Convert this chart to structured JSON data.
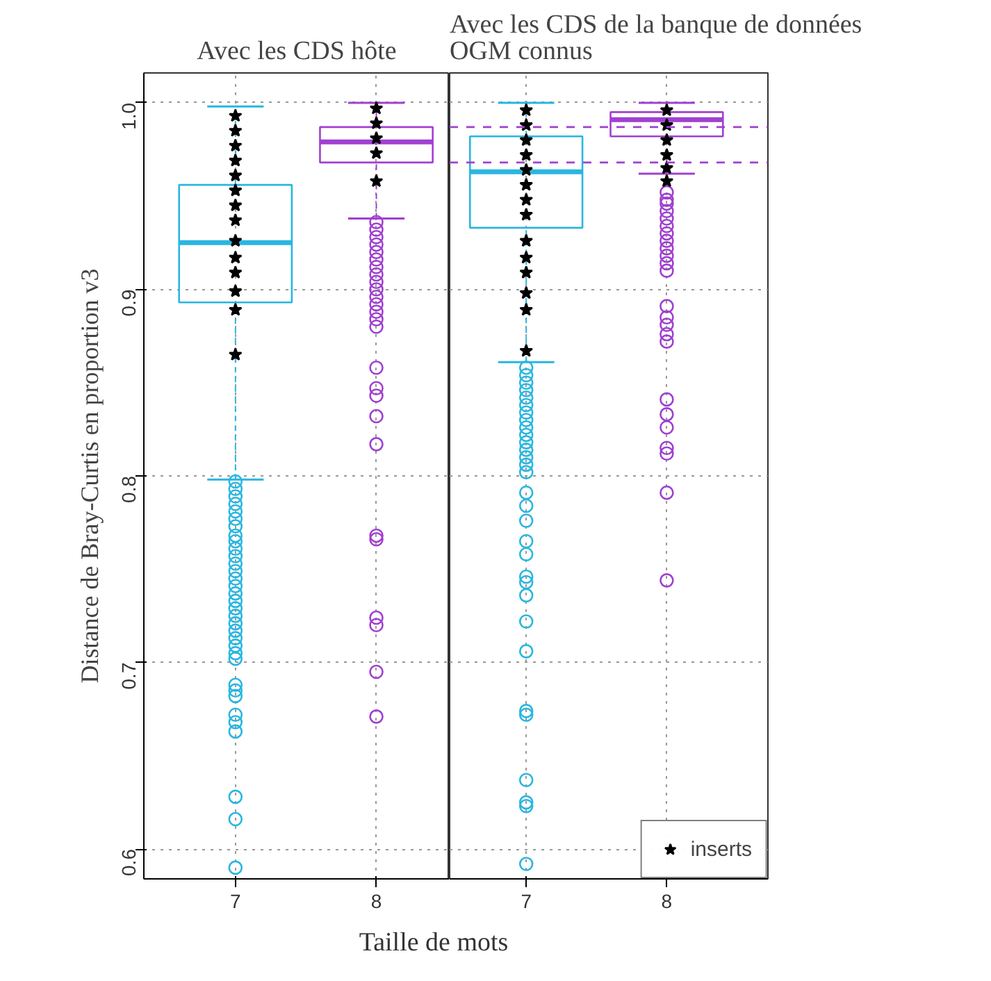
{
  "chart_data": [
    {
      "type": "box",
      "title": "Avec les CDS hôte",
      "xlabel": "Taille de mots",
      "ylabel": "Distance de Bray-Curtis en proportion v3",
      "categories": [
        "7",
        "8"
      ],
      "ylim": [
        0.584,
        1.016
      ],
      "yticks": [
        0.6,
        0.7,
        0.8,
        0.9,
        {
          "value": 1.0,
          "label": "1.0"
        }
      ],
      "grid": true,
      "legend": false,
      "colors": [
        "#29b6e0",
        "#a040d0"
      ],
      "boxes": [
        {
          "low": 0.798,
          "q1": 0.893,
          "median": 0.925,
          "q3": 0.956,
          "high": 0.998,
          "outliers": [
            0.797,
            0.793,
            0.789,
            0.785,
            0.781,
            0.777,
            0.773,
            0.768,
            0.765,
            0.761,
            0.757,
            0.753,
            0.749,
            0.745,
            0.741,
            0.737,
            0.733,
            0.729,
            0.725,
            0.721,
            0.717,
            0.713,
            0.709,
            0.705,
            0.702,
            0.688,
            0.685,
            0.682,
            0.672,
            0.668,
            0.663,
            0.628,
            0.616,
            0.59
          ]
        },
        {
          "low": 0.938,
          "q1": 0.968,
          "median": 0.979,
          "q3": 0.987,
          "high": 1.0,
          "outliers": [
            0.936,
            0.932,
            0.928,
            0.924,
            0.92,
            0.916,
            0.912,
            0.908,
            0.904,
            0.9,
            0.896,
            0.892,
            0.888,
            0.884,
            0.88,
            0.858,
            0.847,
            0.843,
            0.832,
            0.817,
            0.768,
            0.766,
            0.724,
            0.72,
            0.695,
            0.671
          ]
        }
      ],
      "series": [
        {
          "type": "scatter",
          "color": "#000000",
          "marker": "star",
          "x": [
            "7",
            "7",
            "7",
            "7",
            "7",
            "7",
            "7",
            "7",
            "7",
            "7",
            "7",
            "7",
            "7",
            "7",
            "8",
            "8",
            "8",
            "8",
            "8"
          ],
          "values": [
            0.993,
            0.985,
            0.977,
            0.969,
            0.961,
            0.953,
            0.945,
            0.937,
            0.926,
            0.917,
            0.909,
            0.899,
            0.889,
            0.865,
            0.997,
            0.989,
            0.981,
            0.973,
            0.958
          ]
        }
      ]
    },
    {
      "type": "box",
      "title": "Avec les CDS de la banque de données\nOGM connus",
      "categories": [
        "7",
        "8"
      ],
      "ylim": [
        0.584,
        1.016
      ],
      "yticks": [
        0.6,
        0.7,
        0.8,
        0.9,
        1.0
      ],
      "grid": true,
      "legend": "bottom right",
      "tick_labels": "x",
      "colors": [
        "#29b6e0",
        "#a040d0"
      ],
      "boxes": [
        {
          "low": 0.861,
          "q1": 0.933,
          "median": 0.963,
          "q3": 0.982,
          "high": 1.0,
          "outliers": [
            0.858,
            0.854,
            0.85,
            0.846,
            0.842,
            0.838,
            0.834,
            0.83,
            0.826,
            0.822,
            0.818,
            0.814,
            0.81,
            0.806,
            0.802,
            0.791,
            0.784,
            0.776,
            0.765,
            0.758,
            0.746,
            0.743,
            0.736,
            0.722,
            0.706,
            0.674,
            0.672,
            0.637,
            0.625,
            0.623,
            0.592
          ]
        },
        {
          "low": 0.962,
          "q1": 0.982,
          "median": 0.991,
          "q3": 0.995,
          "high": 1.0,
          "outliers": [
            0.952,
            0.948,
            0.946,
            0.942,
            0.938,
            0.934,
            0.93,
            0.926,
            0.922,
            0.918,
            0.914,
            0.91,
            0.891,
            0.885,
            0.881,
            0.876,
            0.872,
            0.841,
            0.833,
            0.826,
            0.815,
            0.812,
            0.791,
            0.744
          ]
        }
      ],
      "ref_lines": [
        {
          "axis": "y",
          "value": 0.987,
          "color": "#a040d0",
          "line_style": "dashed"
        },
        {
          "axis": "y",
          "value": 0.968,
          "color": "#a040d0",
          "line_style": "dashed"
        }
      ],
      "series": [
        {
          "type": "scatter",
          "name": "inserts",
          "color": "#000000",
          "marker": "star",
          "x": [
            "7",
            "7",
            "7",
            "7",
            "7",
            "7",
            "7",
            "7",
            "7",
            "7",
            "7",
            "7",
            "7",
            "7",
            "8",
            "8",
            "8",
            "8",
            "8",
            "8"
          ],
          "values": [
            0.996,
            0.988,
            0.98,
            0.972,
            0.964,
            0.956,
            0.948,
            0.94,
            0.926,
            0.917,
            0.909,
            0.898,
            0.889,
            0.867,
            0.996,
            0.988,
            0.98,
            0.972,
            0.965,
            0.958
          ]
        }
      ]
    }
  ]
}
